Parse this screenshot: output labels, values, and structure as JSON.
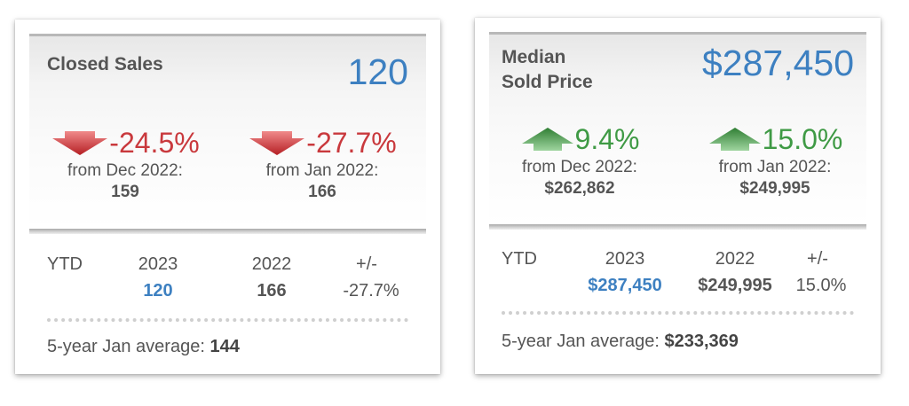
{
  "closed_sales": {
    "title": "Closed Sales",
    "value": "120",
    "change_month": {
      "pct": "-24.5%",
      "direction": "down",
      "label": "from Dec 2022:",
      "value": "159"
    },
    "change_year": {
      "pct": "-27.7%",
      "direction": "down",
      "label": "from Jan 2022:",
      "value": "166"
    },
    "ytd": {
      "label": "YTD",
      "col_current": "2023",
      "col_prior": "2022",
      "col_diff": "+/-",
      "val_current": "120",
      "val_prior": "166",
      "val_diff": "-27.7%"
    },
    "avg": {
      "label": "5-year Jan average:",
      "value": "144"
    }
  },
  "median_price": {
    "title_line1": "Median",
    "title_line2": "Sold Price",
    "value": "$287,450",
    "change_month": {
      "pct": "9.4%",
      "direction": "up",
      "label": "from Dec 2022:",
      "value": "$262,862"
    },
    "change_year": {
      "pct": "15.0%",
      "direction": "up",
      "label": "from Jan 2022:",
      "value": "$249,995"
    },
    "ytd": {
      "label": "YTD",
      "col_current": "2023",
      "col_prior": "2022",
      "col_diff": "+/-",
      "val_current": "$287,450",
      "val_prior": "$249,995",
      "val_diff": "15.0%"
    },
    "avg": {
      "label": "5-year Jan average:",
      "value": "$233,369"
    }
  },
  "colors": {
    "accent_blue": "#3d80c1",
    "down_red": "#c9393d",
    "up_green": "#3f9a45"
  }
}
